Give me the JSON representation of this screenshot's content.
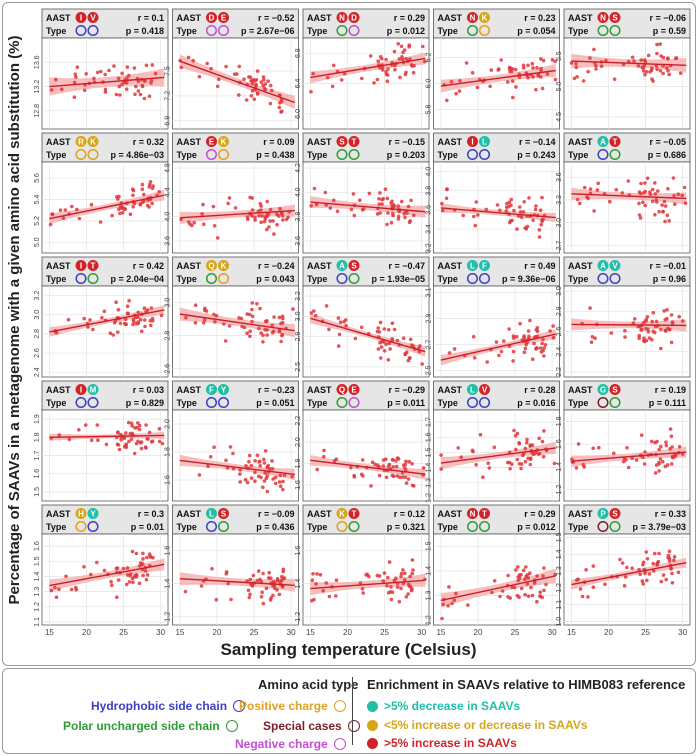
{
  "figure": {
    "y_label": "Percentage of SAAVs in a metagenome with a given amino acid substitution (%)",
    "x_label": "Sampling temperature (Celsius)",
    "aast_label": "AAST",
    "type_label": "Type"
  },
  "colors": {
    "point": "#e0363b",
    "line": "#c8202b",
    "band": "#f4a3a3",
    "header_bg": "#e6e6e6",
    "grid": "#e4e4e4",
    "hydrophobic": "#3b3fc2",
    "polar": "#2e9c36",
    "positive": "#e0a020",
    "special": "#7a1f28",
    "negative": "#c24fd0",
    "decrease": "#1fbfa8",
    "neutral": "#d6a518",
    "increase": "#d0242b"
  },
  "chart_data": {
    "type": "scatter",
    "x_axis": {
      "label": "Sampling temperature (Celsius)",
      "range": [
        14,
        31
      ],
      "ticks": [
        15,
        20,
        25,
        30
      ]
    },
    "panels": [
      {
        "aa": [
          "I",
          "V"
        ],
        "aa_colors": [
          "increase",
          "increase"
        ],
        "types": [
          "hydrophobic",
          "hydrophobic"
        ],
        "r": "r = 0.1",
        "p": "p = 0.418",
        "y_ticks": [
          "12.8",
          "13.2",
          "13.6"
        ],
        "yrange": [
          12.5,
          14.0
        ],
        "line": [
          13.2,
          13.35
        ],
        "band": 0.15
      },
      {
        "aa": [
          "D",
          "E"
        ],
        "aa_colors": [
          "increase",
          "increase"
        ],
        "types": [
          "negative",
          "negative"
        ],
        "r": "r = −0.52",
        "p": "p = 2.67e−06",
        "y_ticks": [
          "6.9",
          "7.2",
          "7.5"
        ],
        "yrange": [
          6.8,
          7.9
        ],
        "line": [
          7.62,
          7.12
        ],
        "band": 0.08
      },
      {
        "aa": [
          "N",
          "D"
        ],
        "aa_colors": [
          "increase",
          "increase"
        ],
        "types": [
          "polar",
          "negative"
        ],
        "r": "r = 0.29",
        "p": "p = 0.012",
        "y_ticks": [
          "6.0",
          "6.4",
          "6.8"
        ],
        "yrange": [
          5.8,
          7.0
        ],
        "line": [
          6.48,
          6.73
        ],
        "band": 0.08
      },
      {
        "aa": [
          "N",
          "K"
        ],
        "aa_colors": [
          "increase",
          "neutral"
        ],
        "types": [
          "polar",
          "positive"
        ],
        "r": "r = 0.23",
        "p": "p = 0.054",
        "y_ticks": [
          "5.8",
          "6.0",
          "6.2"
        ],
        "yrange": [
          5.65,
          6.35
        ],
        "line": [
          5.98,
          6.1
        ],
        "band": 0.05
      },
      {
        "aa": [
          "N",
          "S"
        ],
        "aa_colors": [
          "increase",
          "increase"
        ],
        "types": [
          "polar",
          "polar"
        ],
        "r": "r = −0.06",
        "p": "p = 0.59",
        "y_ticks": [
          "4.5",
          "5.0",
          "5.5"
        ],
        "yrange": [
          4.3,
          5.8
        ],
        "line": [
          5.42,
          5.35
        ],
        "band": 0.12
      },
      {
        "aa": [
          "R",
          "K"
        ],
        "aa_colors": [
          "neutral",
          "neutral"
        ],
        "types": [
          "positive",
          "positive"
        ],
        "r": "r = 0.32",
        "p": "p = 4.86e−03",
        "y_ticks": [
          "5.0",
          "5.2",
          "5.4",
          "5.6"
        ],
        "yrange": [
          4.9,
          5.75
        ],
        "line": [
          5.22,
          5.44
        ],
        "band": 0.05
      },
      {
        "aa": [
          "E",
          "K"
        ],
        "aa_colors": [
          "increase",
          "neutral"
        ],
        "types": [
          "negative",
          "positive"
        ],
        "r": "r = 0.09",
        "p": "p = 0.438",
        "y_ticks": [
          "3.6",
          "4.0",
          "4.4",
          "4.8"
        ],
        "yrange": [
          3.4,
          4.9
        ],
        "line": [
          3.98,
          4.1
        ],
        "band": 0.1
      },
      {
        "aa": [
          "S",
          "T"
        ],
        "aa_colors": [
          "increase",
          "increase"
        ],
        "types": [
          "polar",
          "polar"
        ],
        "r": "r = −0.15",
        "p": "p = 0.203",
        "y_ticks": [
          "3.6",
          "3.8",
          "4.0",
          "4.2"
        ],
        "yrange": [
          3.5,
          4.25
        ],
        "line": [
          3.92,
          3.84
        ],
        "band": 0.05
      },
      {
        "aa": [
          "I",
          "L"
        ],
        "aa_colors": [
          "increase",
          "decrease"
        ],
        "types": [
          "hydrophobic",
          "hydrophobic"
        ],
        "r": "r = −0.14",
        "p": "p = 0.243",
        "y_ticks": [
          "3.2",
          "3.4",
          "3.6",
          "3.8",
          "4.0"
        ],
        "yrange": [
          3.15,
          4.1
        ],
        "line": [
          3.62,
          3.52
        ],
        "band": 0.05
      },
      {
        "aa": [
          "A",
          "T"
        ],
        "aa_colors": [
          "decrease",
          "increase"
        ],
        "types": [
          "hydrophobic",
          "polar"
        ],
        "r": "r = −0.05",
        "p": "p = 0.686",
        "y_ticks": [
          "2.7",
          "3.0",
          "3.3",
          "3.6"
        ],
        "yrange": [
          2.6,
          3.8
        ],
        "line": [
          3.38,
          3.32
        ],
        "band": 0.08
      },
      {
        "aa": [
          "I",
          "T"
        ],
        "aa_colors": [
          "increase",
          "increase"
        ],
        "types": [
          "hydrophobic",
          "polar"
        ],
        "r": "r = 0.42",
        "p": "p = 2.04e−04",
        "y_ticks": [
          "2.4",
          "2.6",
          "2.8",
          "3.0",
          "3.2"
        ],
        "yrange": [
          2.35,
          3.3
        ],
        "line": [
          2.82,
          3.05
        ],
        "band": 0.05
      },
      {
        "aa": [
          "Q",
          "K"
        ],
        "aa_colors": [
          "neutral",
          "neutral"
        ],
        "types": [
          "polar",
          "positive"
        ],
        "r": "r = −0.24",
        "p": "p = 0.043",
        "y_ticks": [
          "2.6",
          "2.8",
          "3.0"
        ],
        "yrange": [
          2.55,
          3.1
        ],
        "line": [
          2.93,
          2.83
        ],
        "band": 0.04
      },
      {
        "aa": [
          "A",
          "S"
        ],
        "aa_colors": [
          "decrease",
          "increase"
        ],
        "types": [
          "hydrophobic",
          "polar"
        ],
        "r": "r = −0.47",
        "p": "p = 1.93e−05",
        "y_ticks": [
          "2.5",
          "2.8",
          "3.0",
          "3.2"
        ],
        "yrange": [
          2.4,
          3.3
        ],
        "line": [
          2.98,
          2.65
        ],
        "band": 0.05
      },
      {
        "aa": [
          "L",
          "F"
        ],
        "aa_colors": [
          "decrease",
          "decrease"
        ],
        "types": [
          "hydrophobic",
          "hydrophobic"
        ],
        "r": "r = 0.49",
        "p": "p = 9.36e−06",
        "y_ticks": [
          "2.5",
          "2.7",
          "2.9",
          "3.1"
        ],
        "yrange": [
          2.45,
          3.15
        ],
        "line": [
          2.58,
          2.78
        ],
        "band": 0.04
      },
      {
        "aa": [
          "A",
          "V"
        ],
        "aa_colors": [
          "decrease",
          "decrease"
        ],
        "types": [
          "hydrophobic",
          "hydrophobic"
        ],
        "r": "r = −0.01",
        "p": "p = 0.96",
        "y_ticks": [
          "2.2",
          "2.4",
          "2.6",
          "2.8",
          "3.0"
        ],
        "yrange": [
          2.15,
          3.05
        ],
        "line": [
          2.67,
          2.66
        ],
        "band": 0.06
      },
      {
        "aa": [
          "I",
          "M"
        ],
        "aa_colors": [
          "increase",
          "decrease"
        ],
        "types": [
          "hydrophobic",
          "hydrophobic"
        ],
        "r": "r = 0.03",
        "p": "p = 0.829",
        "y_ticks": [
          "1.5",
          "1.6",
          "1.7",
          "1.8",
          "1.9"
        ],
        "yrange": [
          1.45,
          1.95
        ],
        "line": [
          1.8,
          1.81
        ],
        "band": 0.02
      },
      {
        "aa": [
          "F",
          "Y"
        ],
        "aa_colors": [
          "decrease",
          "decrease"
        ],
        "types": [
          "hydrophobic",
          "hydrophobic"
        ],
        "r": "r = −0.23",
        "p": "p = 0.051",
        "y_ticks": [
          "1.6",
          "1.8",
          "2.0"
        ],
        "yrange": [
          1.45,
          2.1
        ],
        "line": [
          1.74,
          1.64
        ],
        "band": 0.04
      },
      {
        "aa": [
          "Q",
          "E"
        ],
        "aa_colors": [
          "increase",
          "increase"
        ],
        "types": [
          "polar",
          "negative"
        ],
        "r": "r = −0.29",
        "p": "p = 0.011",
        "y_ticks": [
          "1.6",
          "1.8",
          "2.0",
          "2.2"
        ],
        "yrange": [
          1.45,
          2.3
        ],
        "line": [
          1.83,
          1.7
        ],
        "band": 0.05
      },
      {
        "aa": [
          "L",
          "V"
        ],
        "aa_colors": [
          "decrease",
          "increase"
        ],
        "types": [
          "hydrophobic",
          "hydrophobic"
        ],
        "r": "r = 0.28",
        "p": "p = 0.016",
        "y_ticks": [
          "1.2",
          "1.3",
          "1.4",
          "1.5",
          "1.6",
          "1.7"
        ],
        "yrange": [
          1.18,
          1.78
        ],
        "line": [
          1.43,
          1.53
        ],
        "band": 0.04
      },
      {
        "aa": [
          "G",
          "S"
        ],
        "aa_colors": [
          "decrease",
          "increase"
        ],
        "types": [
          "special",
          "polar"
        ],
        "r": "r = 0.19",
        "p": "p = 0.111",
        "y_ticks": [
          "1.2",
          "1.4",
          "1.6",
          "1.8"
        ],
        "yrange": [
          1.1,
          1.9
        ],
        "line": [
          1.45,
          1.53
        ],
        "band": 0.05
      },
      {
        "aa": [
          "H",
          "Y"
        ],
        "aa_colors": [
          "neutral",
          "decrease"
        ],
        "types": [
          "positive",
          "hydrophobic"
        ],
        "r": "r = 0.3",
        "p": "p = 0.01",
        "y_ticks": [
          "1.1",
          "1.2",
          "1.3",
          "1.4",
          "1.5",
          "1.6"
        ],
        "yrange": [
          1.08,
          1.68
        ],
        "line": [
          1.34,
          1.48
        ],
        "band": 0.04
      },
      {
        "aa": [
          "L",
          "S"
        ],
        "aa_colors": [
          "decrease",
          "increase"
        ],
        "types": [
          "hydrophobic",
          "polar"
        ],
        "r": "r = −0.09",
        "p": "p = 0.436",
        "y_ticks": [
          "1.2",
          "1.4",
          "1.6"
        ],
        "yrange": [
          1.15,
          1.7
        ],
        "line": [
          1.43,
          1.39
        ],
        "band": 0.04
      },
      {
        "aa": [
          "K",
          "T"
        ],
        "aa_colors": [
          "neutral",
          "increase"
        ],
        "types": [
          "positive",
          "polar"
        ],
        "r": "r = 0.12",
        "p": "p = 0.321",
        "y_ticks": [
          "1.2",
          "1.4",
          "1.6"
        ],
        "yrange": [
          1.15,
          1.7
        ],
        "line": [
          1.37,
          1.42
        ],
        "band": 0.04
      },
      {
        "aa": [
          "N",
          "T"
        ],
        "aa_colors": [
          "increase",
          "increase"
        ],
        "types": [
          "polar",
          "polar"
        ],
        "r": "r = 0.29",
        "p": "p = 0.012",
        "y_ticks": [
          "1.2",
          "1.3",
          "1.4",
          "1.5"
        ],
        "yrange": [
          1.18,
          1.55
        ],
        "line": [
          1.28,
          1.38
        ],
        "band": 0.03
      },
      {
        "aa": [
          "P",
          "S"
        ],
        "aa_colors": [
          "decrease",
          "increase"
        ],
        "types": [
          "special",
          "polar"
        ],
        "r": "r = 0.33",
        "p": "p = 3.79e−03",
        "y_ticks": [
          "1.0",
          "1.1",
          "1.2",
          "1.3",
          "1.4",
          "1.5"
        ],
        "yrange": [
          0.98,
          1.52
        ],
        "line": [
          1.22,
          1.35
        ],
        "band": 0.03
      }
    ]
  },
  "legend": {
    "type_title": "Amino acid type",
    "hydrophobic": "Hydrophobic side chain",
    "polar": "Polar uncharged side chain",
    "positive": "Positive charge",
    "special": "Special cases",
    "negative": "Negative charge",
    "enrich_title": "Enrichment in SAAVs relative to HIMB083 reference",
    "decrease": ">5% decrease in SAAVs",
    "neutral": "<5% increase or decrease in SAAVs",
    "increase": ">5% increase in SAAVs"
  }
}
